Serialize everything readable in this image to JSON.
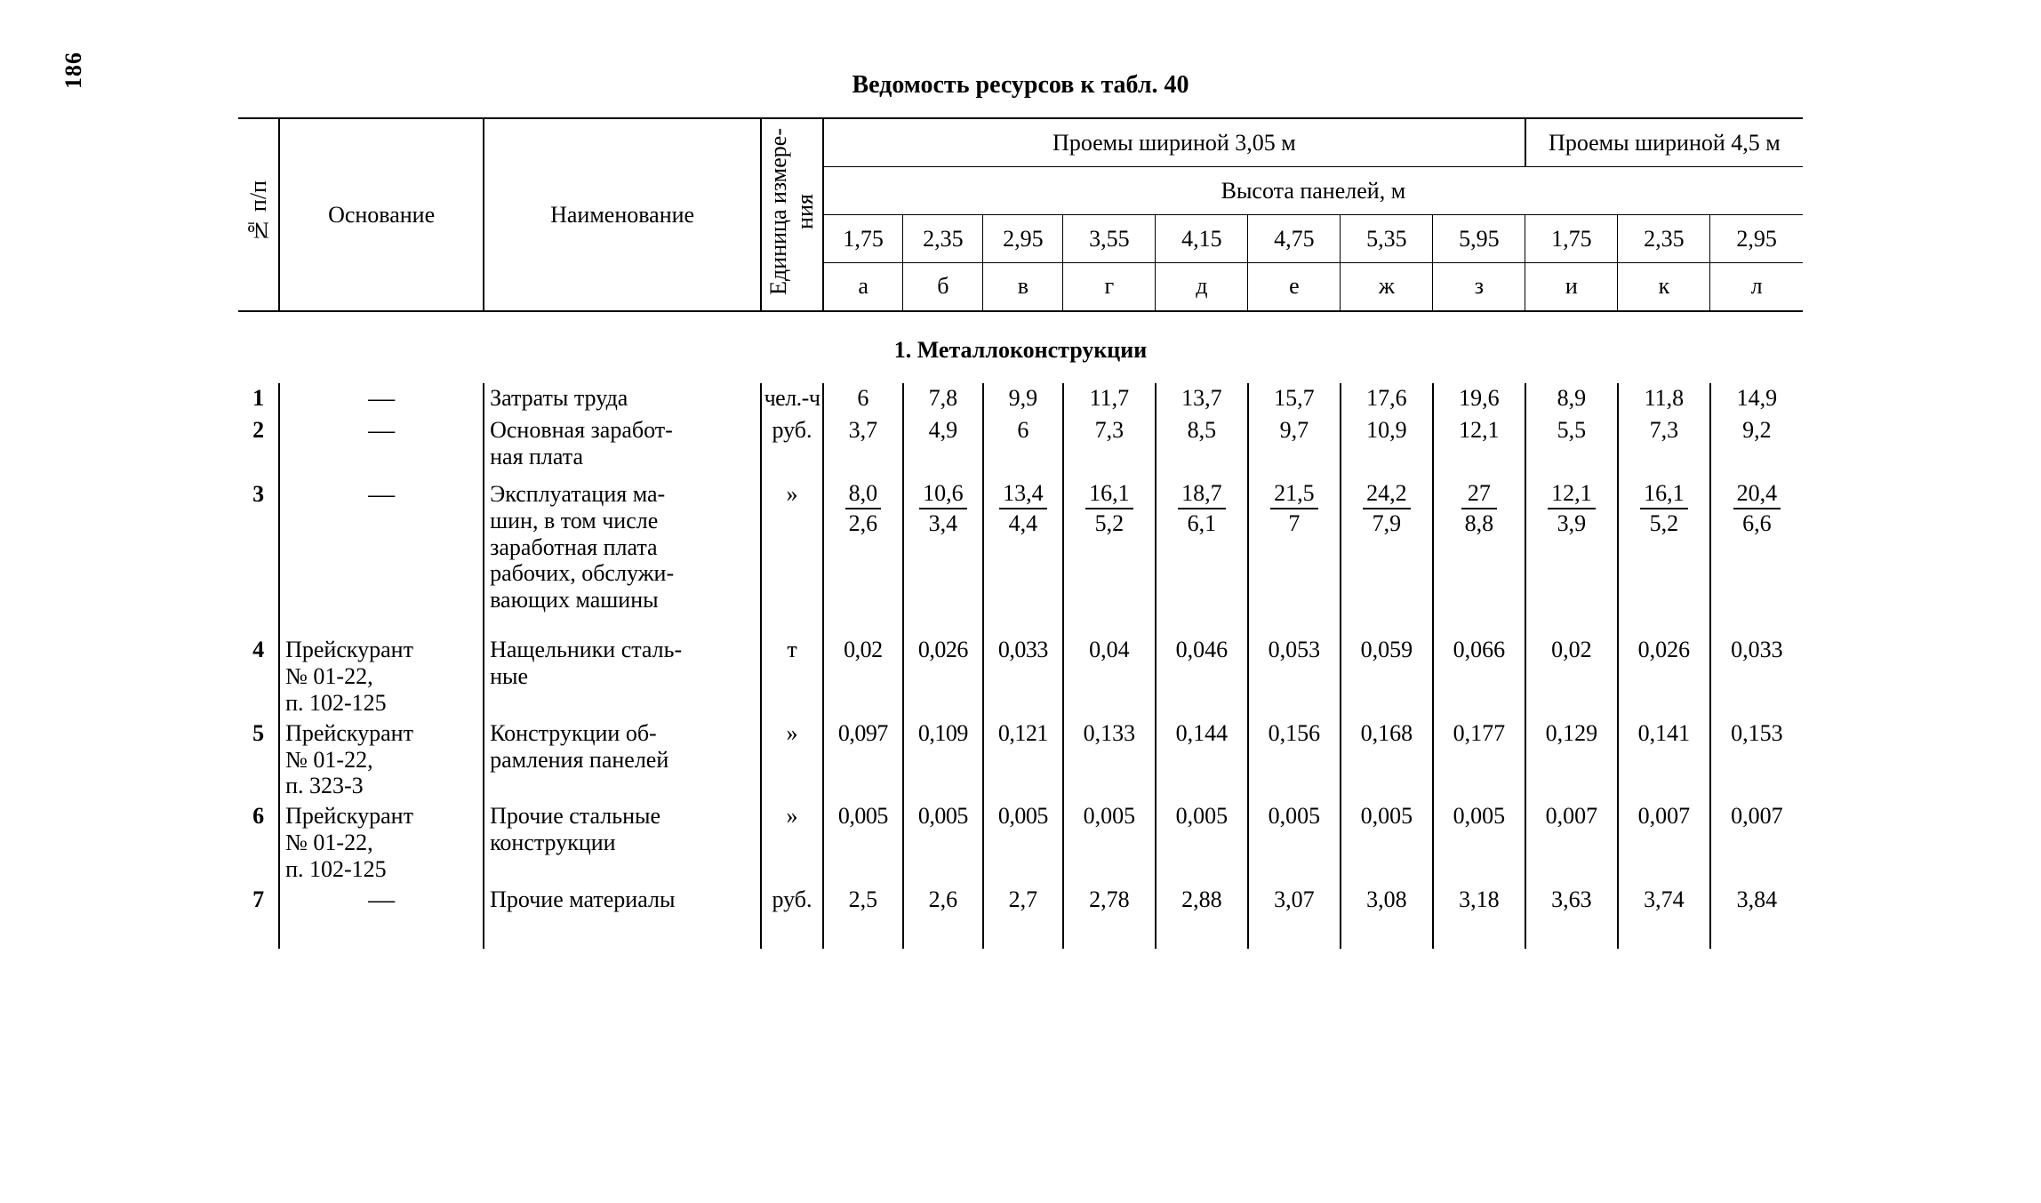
{
  "page_number": "186",
  "title": "Ведомость ресурсов к табл. 40",
  "header": {
    "idx": "№ п/п",
    "basis": "Основание",
    "name": "Наименование",
    "unit": "Единица измере-\nния",
    "group_305": "Проемы шириной 3,05 м",
    "group_45": "Проемы шириной 4,5 м",
    "panel_height": "Высота панелей, м",
    "heights": [
      "1,75",
      "2,35",
      "2,95",
      "3,55",
      "4,15",
      "4,75",
      "5,35",
      "5,95",
      "1,75",
      "2,35",
      "2,95"
    ],
    "letters": [
      "а",
      "б",
      "в",
      "г",
      "д",
      "е",
      "ж",
      "з",
      "и",
      "к",
      "л"
    ]
  },
  "section1": "1. Металлоконструкции",
  "rows": {
    "r1": {
      "idx": "1",
      "basis": "—",
      "name": "Затраты труда",
      "unit": "чел.-ч",
      "v": [
        "6",
        "7,8",
        "9,9",
        "11,7",
        "13,7",
        "15,7",
        "17,6",
        "19,6",
        "8,9",
        "11,8",
        "14,9"
      ]
    },
    "r2": {
      "idx": "2",
      "basis": "—",
      "name": "Основная заработ-\nная плата",
      "unit": "руб.",
      "v": [
        "3,7",
        "4,9",
        "6",
        "7,3",
        "8,5",
        "9,7",
        "10,9",
        "12,1",
        "5,5",
        "7,3",
        "9,2"
      ]
    },
    "r3": {
      "idx": "3",
      "basis": "—",
      "name": "Эксплуатация ма-\nшин, в том числе\nзаработная плата\nрабочих, обслужи-\nвающих машины",
      "unit": "»",
      "top": [
        "8,0",
        "10,6",
        "13,4",
        "16,1",
        "18,7",
        "21,5",
        "24,2",
        "27",
        "12,1",
        "16,1",
        "20,4"
      ],
      "bot": [
        "2,6",
        "3,4",
        "4,4",
        "5,2",
        "6,1",
        "7",
        "7,9",
        "8,8",
        "3,9",
        "5,2",
        "6,6"
      ]
    },
    "r4": {
      "idx": "4",
      "basis": "Прейскурант\n№ 01-22,\nп. 102-125",
      "name": "Нащельники сталь-\nные",
      "unit": "т",
      "v": [
        "0,02",
        "0,026",
        "0,033",
        "0,04",
        "0,046",
        "0,053",
        "0,059",
        "0,066",
        "0,02",
        "0,026",
        "0,033"
      ]
    },
    "r5": {
      "idx": "5",
      "basis": "Прейскурант\n№ 01-22,\nп. 323-3",
      "name": "Конструкции об-\nрамления панелей",
      "unit": "»",
      "v": [
        "0,097",
        "0,109",
        "0,121",
        "0,133",
        "0,144",
        "0,156",
        "0,168",
        "0,177",
        "0,129",
        "0,141",
        "0,153"
      ]
    },
    "r6": {
      "idx": "6",
      "basis": "Прейскурант\n№ 01-22,\nп. 102-125",
      "name": "Прочие стальные\nконструкции",
      "unit": "»",
      "v": [
        "0,005",
        "0,005",
        "0,005",
        "0,005",
        "0,005",
        "0,005",
        "0,005",
        "0,005",
        "0,007",
        "0,007",
        "0,007"
      ]
    },
    "r7": {
      "idx": "7",
      "basis": "—",
      "name": "Прочие материалы",
      "unit": "руб.",
      "v": [
        "2,5",
        "2,6",
        "2,7",
        "2,78",
        "2,88",
        "3,07",
        "3,08",
        "3,18",
        "3,63",
        "3,74",
        "3,84"
      ]
    }
  }
}
